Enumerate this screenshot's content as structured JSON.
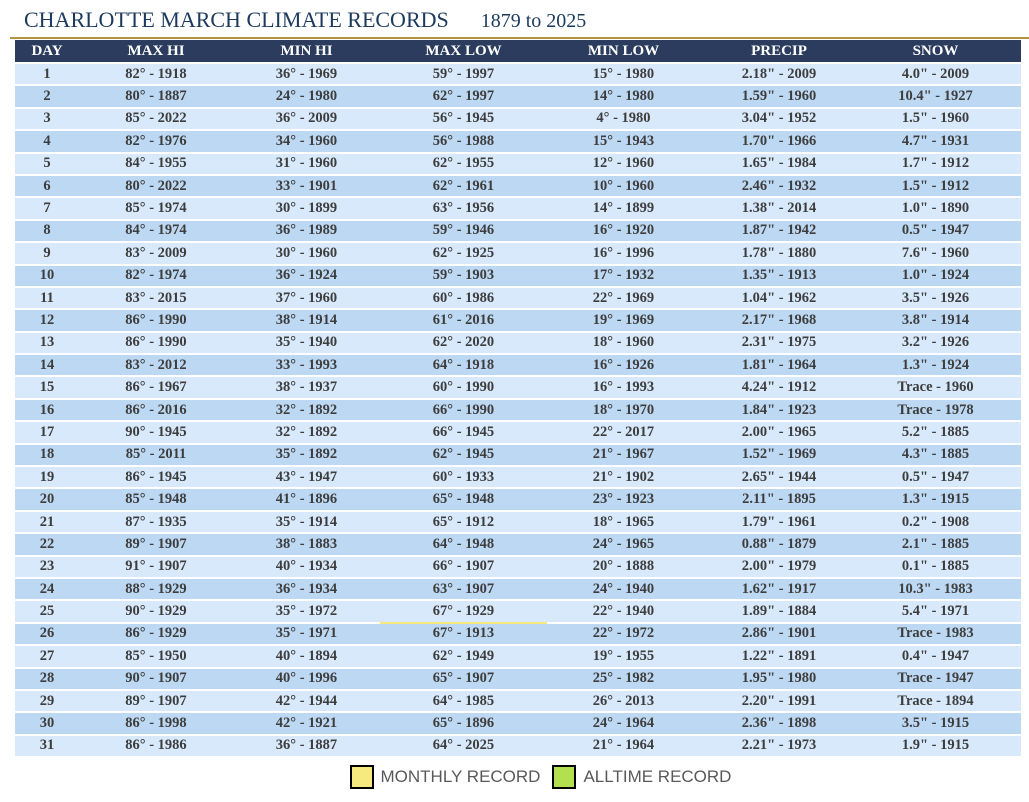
{
  "colors": {
    "header_bg": "#2b3c5e",
    "row_light": "#d7e9fb",
    "row_dark": "#bdd8f3",
    "monthly_record": "#f6e97e",
    "alltime_record": "#b2e04e",
    "gold_rule": "#b3953f",
    "title_text": "#1c3a5e",
    "cell_text": "#3d3d3d",
    "legend_text": "#595959"
  },
  "chart_data": {
    "type": "table",
    "title": "CHARLOTTE MARCH CLIMATE RECORDS",
    "subtitle": "1879 to 2025",
    "columns": [
      "DAY",
      "MAX HI",
      "MIN HI",
      "MAX LOW",
      "MIN LOW",
      "PRECIP",
      "SNOW"
    ],
    "highlight_legend": [
      {
        "label": "MONTHLY RECORD",
        "color_key": "monthly_record"
      },
      {
        "label": "ALLTIME RECORD",
        "color_key": "alltime_record"
      }
    ],
    "rows": [
      {
        "cells": [
          "1",
          "82° - 1918",
          "36° - 1969",
          "59° - 1997",
          "15° - 1980",
          "2.18\" - 2009",
          "4.0\" - 2009"
        ],
        "hl": []
      },
      {
        "cells": [
          "2",
          "80° - 1887",
          "24° - 1980",
          "62° - 1997",
          "14° - 1980",
          "1.59\" - 1960",
          "10.4\" - 1927"
        ],
        "hl": [
          2,
          6
        ]
      },
      {
        "cells": [
          "3",
          "85° - 2022",
          "36° - 2009",
          "56° - 1945",
          "4° - 1980",
          "3.04\" - 1952",
          "1.5\" - 1960"
        ],
        "hl": [
          4
        ]
      },
      {
        "cells": [
          "4",
          "82° - 1976",
          "34° - 1960",
          "56° - 1988",
          "15° - 1943",
          "1.70\" - 1966",
          "4.7\" - 1931"
        ],
        "hl": []
      },
      {
        "cells": [
          "5",
          "84° - 1955",
          "31° - 1960",
          "62° - 1955",
          "12° - 1960",
          "1.65\" - 1984",
          "1.7\" - 1912"
        ],
        "hl": []
      },
      {
        "cells": [
          "6",
          "80° - 2022",
          "33° - 1901",
          "62° - 1961",
          "10° - 1960",
          "2.46\" - 1932",
          "1.5\" - 1912"
        ],
        "hl": []
      },
      {
        "cells": [
          "7",
          "85° - 1974",
          "30° - 1899",
          "63° - 1956",
          "14° - 1899",
          "1.38\" - 2014",
          "1.0\" - 1890"
        ],
        "hl": []
      },
      {
        "cells": [
          "8",
          "84° - 1974",
          "36° - 1989",
          "59° - 1946",
          "16° - 1920",
          "1.87\" - 1942",
          "0.5\" - 1947"
        ],
        "hl": []
      },
      {
        "cells": [
          "9",
          "83° - 2009",
          "30° - 1960",
          "62° - 1925",
          "16° - 1996",
          "1.78\" - 1880",
          "7.6\" - 1960"
        ],
        "hl": []
      },
      {
        "cells": [
          "10",
          "82° - 1974",
          "36° - 1924",
          "59° - 1903",
          "17° - 1932",
          "1.35\" - 1913",
          "1.0\" - 1924"
        ],
        "hl": []
      },
      {
        "cells": [
          "11",
          "83° - 2015",
          "37° - 1960",
          "60° - 1986",
          "22° - 1969",
          "1.04\" - 1962",
          "3.5\" - 1926"
        ],
        "hl": []
      },
      {
        "cells": [
          "12",
          "86° - 1990",
          "38° - 1914",
          "61° - 2016",
          "19° - 1969",
          "2.17\" - 1968",
          "3.8\" - 1914"
        ],
        "hl": []
      },
      {
        "cells": [
          "13",
          "86° - 1990",
          "35° - 1940",
          "62° - 2020",
          "18° - 1960",
          "2.31\" - 1975",
          "3.2\" - 1926"
        ],
        "hl": []
      },
      {
        "cells": [
          "14",
          "83° - 2012",
          "33° - 1993",
          "64° - 1918",
          "16° - 1926",
          "1.81\" - 1964",
          "1.3\" - 1924"
        ],
        "hl": []
      },
      {
        "cells": [
          "15",
          "86° - 1967",
          "38° - 1937",
          "60° - 1990",
          "16° - 1993",
          "4.24\" - 1912",
          "Trace - 1960"
        ],
        "hl": [
          5
        ]
      },
      {
        "cells": [
          "16",
          "86° - 2016",
          "32° - 1892",
          "66° - 1990",
          "18° - 1970",
          "1.84\" - 1923",
          "Trace - 1978"
        ],
        "hl": []
      },
      {
        "cells": [
          "17",
          "90° - 1945",
          "32° - 1892",
          "66° - 1945",
          "22° - 2017",
          "2.00\" - 1965",
          "5.2\" - 1885"
        ],
        "hl": []
      },
      {
        "cells": [
          "18",
          "85° - 2011",
          "35° - 1892",
          "62° - 1945",
          "21° - 1967",
          "1.52\" - 1969",
          "4.3\" - 1885"
        ],
        "hl": []
      },
      {
        "cells": [
          "19",
          "86° - 1945",
          "43° - 1947",
          "60° - 1933",
          "21° - 1902",
          "2.65\" - 1944",
          "0.5\" - 1947"
        ],
        "hl": []
      },
      {
        "cells": [
          "20",
          "85° - 1948",
          "41° - 1896",
          "65° - 1948",
          "23° - 1923",
          "2.11\" - 1895",
          "1.3\" - 1915"
        ],
        "hl": []
      },
      {
        "cells": [
          "21",
          "87° - 1935",
          "35° - 1914",
          "65° - 1912",
          "18° - 1965",
          "1.79\" - 1961",
          "0.2\" - 1908"
        ],
        "hl": []
      },
      {
        "cells": [
          "22",
          "89° - 1907",
          "38° - 1883",
          "64° - 1948",
          "24° - 1965",
          "0.88\" - 1879",
          "2.1\" - 1885"
        ],
        "hl": []
      },
      {
        "cells": [
          "23",
          "91° - 1907",
          "40° - 1934",
          "66° - 1907",
          "20° - 1888",
          "2.00\" - 1979",
          "0.1\" - 1885"
        ],
        "hl": [
          1
        ]
      },
      {
        "cells": [
          "24",
          "88° - 1929",
          "36° - 1934",
          "63° - 1907",
          "24° - 1940",
          "1.62\" - 1917",
          "10.3\" - 1983"
        ],
        "hl": []
      },
      {
        "cells": [
          "25",
          "90° - 1929",
          "35° - 1972",
          "67° - 1929",
          "22° - 1940",
          "1.89\" - 1884",
          "5.4\" - 1971"
        ],
        "hl": [
          3
        ]
      },
      {
        "cells": [
          "26",
          "86° - 1929",
          "35° - 1971",
          "67° - 1913",
          "22° - 1972",
          "2.86\" - 1901",
          "Trace - 1983"
        ],
        "hl": [
          3
        ]
      },
      {
        "cells": [
          "27",
          "85° - 1950",
          "40° - 1894",
          "62° - 1949",
          "19° - 1955",
          "1.22\" - 1891",
          "0.4\" - 1947"
        ],
        "hl": []
      },
      {
        "cells": [
          "28",
          "90° - 1907",
          "40° - 1996",
          "65° - 1907",
          "25° - 1982",
          "1.95\" - 1980",
          "Trace - 1947"
        ],
        "hl": []
      },
      {
        "cells": [
          "29",
          "89° - 1907",
          "42° - 1944",
          "64° - 1985",
          "26° - 2013",
          "2.20\" - 1991",
          "Trace - 1894"
        ],
        "hl": []
      },
      {
        "cells": [
          "30",
          "86° - 1998",
          "42° - 1921",
          "65° - 1896",
          "24° - 1964",
          "2.36\" - 1898",
          "3.5\" - 1915"
        ],
        "hl": []
      },
      {
        "cells": [
          "31",
          "86° - 1986",
          "36° - 1887",
          "64° - 2025",
          "21° - 1964",
          "2.21\" - 1973",
          "1.9\" - 1915"
        ],
        "hl": []
      }
    ]
  }
}
